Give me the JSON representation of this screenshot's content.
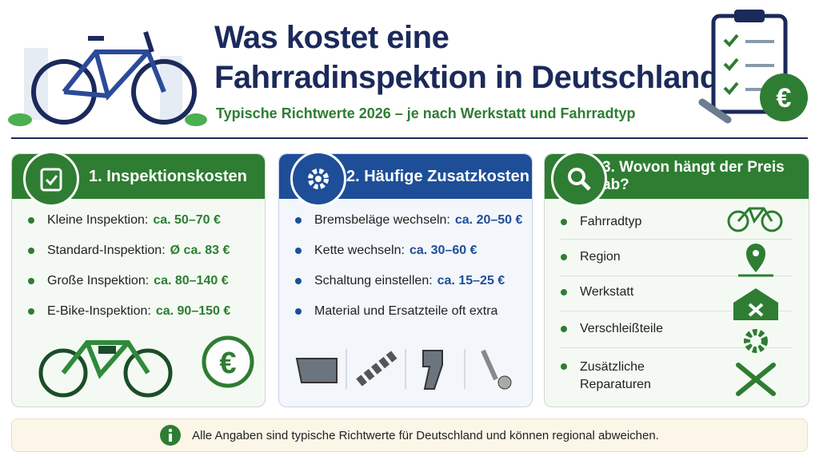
{
  "header": {
    "title_lines": [
      "Was kostet eine",
      "Fahrradinspektion in Deutschland?"
    ],
    "subtitle": "Typische Richtwerte 2026 – je nach Werkstatt und Fahrradtyp"
  },
  "panels": [
    {
      "heading": "1. Inspektionskosten",
      "items": [
        {
          "label": "Kleine Inspektion:",
          "price": "ca. 50–70 €"
        },
        {
          "label": "Standard-Inspektion:",
          "price": "Ø ca. 83 €"
        },
        {
          "label": "Große Inspektion:",
          "price": "ca. 80–140 €"
        },
        {
          "label": "E-Bike-Inspektion:",
          "price": "ca. 90–150 €"
        }
      ]
    },
    {
      "heading": "2. Häufige Zusatzkosten",
      "items": [
        {
          "label": "Bremsbeläge wechseln:",
          "price": "ca. 20–50 €"
        },
        {
          "label": "Kette wechseln:",
          "price": "ca. 30–60 €"
        },
        {
          "label": "Schaltung einstellen:",
          "price": "ca. 15–25 €"
        },
        {
          "label": "Material und Ersatzteile oft extra"
        }
      ]
    },
    {
      "heading": "3. Wovon hängt der Preis ab?",
      "items": [
        {
          "label": "Fahrradtyp"
        },
        {
          "label": "Region"
        },
        {
          "label": "Werkstatt"
        },
        {
          "label": "Verschleißteile"
        },
        {
          "label": "Zusätzliche Reparaturen"
        }
      ]
    }
  ],
  "footer": {
    "note": "Alle Angaben sind typische Richtwerte für Deutschland und können regional abweichen."
  }
}
